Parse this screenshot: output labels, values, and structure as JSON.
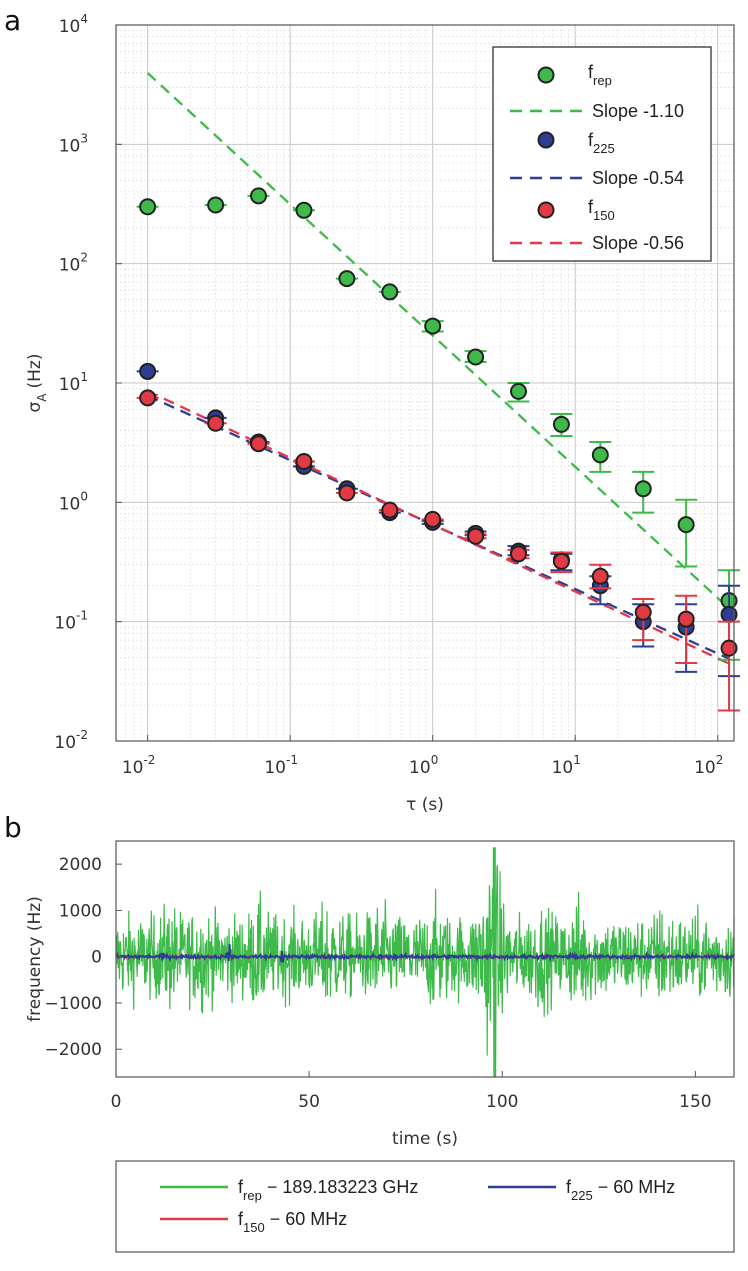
{
  "colors": {
    "frep": "#3dba4a",
    "f225": "#2f3e93",
    "f150": "#e23a45",
    "grid": "#d6d6d6",
    "axis": "#555555"
  },
  "chart_data": [
    {
      "panel": "a",
      "type": "scatter",
      "xscale": "log",
      "yscale": "log",
      "xlabel": "τ (s)",
      "ylabel": "σ",
      "ylabel_sub": "A",
      "ylabel_unit": "(Hz)",
      "xlim": [
        0.006,
        130
      ],
      "ylim": [
        0.01,
        10000
      ],
      "xticks": [
        {
          "base": "10",
          "exp": "-2",
          "v": 0.01
        },
        {
          "base": "10",
          "exp": "-1",
          "v": 0.1
        },
        {
          "base": "10",
          "exp": "0",
          "v": 1
        },
        {
          "base": "10",
          "exp": "1",
          "v": 10
        },
        {
          "base": "10",
          "exp": "2",
          "v": 100
        }
      ],
      "yticks": [
        {
          "base": "10",
          "exp": "-2",
          "v": 0.01
        },
        {
          "base": "10",
          "exp": "-1",
          "v": 0.1
        },
        {
          "base": "10",
          "exp": "0",
          "v": 1
        },
        {
          "base": "10",
          "exp": "1",
          "v": 10
        },
        {
          "base": "10",
          "exp": "2",
          "v": 100
        },
        {
          "base": "10",
          "exp": "3",
          "v": 1000
        },
        {
          "base": "10",
          "exp": "4",
          "v": 10000
        }
      ],
      "grid": true,
      "legend_position": "top-right",
      "series": [
        {
          "name": "f",
          "sub": "rep",
          "color_key": "frep",
          "x": [
            0.01,
            0.03,
            0.06,
            0.125,
            0.25,
            0.5,
            1,
            2,
            4,
            8,
            15,
            30,
            60,
            120
          ],
          "y": [
            300,
            310,
            370,
            280,
            75,
            58,
            30,
            16.5,
            8.5,
            4.5,
            2.5,
            1.3,
            0.65,
            0.15
          ],
          "err_low": [
            300,
            310,
            370,
            280,
            75,
            58,
            27,
            15,
            7,
            3.6,
            1.8,
            0.82,
            0.29,
            0.048
          ],
          "err_high": [
            300,
            310,
            370,
            280,
            75,
            58,
            33,
            18.5,
            10,
            5.5,
            3.2,
            1.8,
            1.05,
            0.27
          ],
          "fit": {
            "label": "Slope -1.10",
            "slope": -1.1,
            "x": [
              0.01,
              120
            ],
            "y_at_1": 25
          }
        },
        {
          "name": "f",
          "sub": "225",
          "color_key": "f225",
          "x": [
            0.01,
            0.03,
            0.06,
            0.125,
            0.25,
            0.5,
            1,
            2,
            4,
            8,
            15,
            30,
            60,
            120
          ],
          "y": [
            12.5,
            5.1,
            3.2,
            2.0,
            1.3,
            0.82,
            0.68,
            0.55,
            0.39,
            0.33,
            0.2,
            0.1,
            0.09,
            0.115
          ],
          "err_low": [
            12.5,
            5.1,
            3.2,
            2.0,
            1.3,
            0.8,
            0.66,
            0.53,
            0.36,
            0.27,
            0.14,
            0.062,
            0.038,
            0.035
          ],
          "err_high": [
            12.5,
            5.1,
            3.2,
            2.0,
            1.3,
            0.84,
            0.7,
            0.57,
            0.43,
            0.37,
            0.24,
            0.14,
            0.14,
            0.2
          ],
          "fit": {
            "label": "Slope -0.54",
            "slope": -0.54,
            "x": [
              0.01,
              120
            ],
            "y_at_1": 0.65
          }
        },
        {
          "name": "f",
          "sub": "150",
          "color_key": "f150",
          "x": [
            0.01,
            0.03,
            0.06,
            0.125,
            0.25,
            0.5,
            1,
            2,
            4,
            8,
            15,
            30,
            60,
            120
          ],
          "y": [
            7.5,
            4.6,
            3.1,
            2.2,
            1.2,
            0.86,
            0.72,
            0.52,
            0.37,
            0.32,
            0.24,
            0.12,
            0.105,
            0.06
          ],
          "err_low": [
            7.5,
            4.6,
            3.1,
            2.2,
            1.2,
            0.84,
            0.7,
            0.5,
            0.34,
            0.26,
            0.19,
            0.07,
            0.045,
            0.018
          ],
          "err_high": [
            7.5,
            4.6,
            3.1,
            2.2,
            1.2,
            0.88,
            0.74,
            0.54,
            0.4,
            0.38,
            0.3,
            0.155,
            0.165,
            0.1
          ],
          "fit": {
            "label": "Slope -0.56",
            "slope": -0.56,
            "x": [
              0.01,
              120
            ],
            "y_at_1": 0.65
          }
        }
      ]
    },
    {
      "panel": "b",
      "type": "line",
      "xlabel": "time (s)",
      "ylabel": "frequency (Hz)",
      "xlim": [
        0,
        160
      ],
      "ylim": [
        -2600,
        2500
      ],
      "xticks": [
        0,
        50,
        100,
        150
      ],
      "yticks": [
        -2000,
        -1000,
        0,
        1000,
        2000
      ],
      "xtick_labels": [
        "0",
        "50",
        "100",
        "150"
      ],
      "ytick_labels": [
        "−2000",
        "−1000",
        "0",
        "1000",
        "2000"
      ],
      "legend_position": "bottom-outside",
      "series": [
        {
          "name": "f",
          "sub": "rep",
          "suffix": " − 189.183223 GHz",
          "color_key": "frep",
          "typical_amplitude_hz": 900,
          "peak_max_hz": 2350,
          "peak_min_hz": -2600
        },
        {
          "name": "f",
          "sub": "225",
          "suffix": " − 60 MHz",
          "color_key": "f225",
          "typical_amplitude_hz": 25,
          "spike_at_s": 29,
          "spike_amplitude_hz": 280
        },
        {
          "name": "f",
          "sub": "150",
          "suffix": " − 60 MHz",
          "color_key": "f150",
          "typical_amplitude_hz": 15
        }
      ]
    }
  ]
}
